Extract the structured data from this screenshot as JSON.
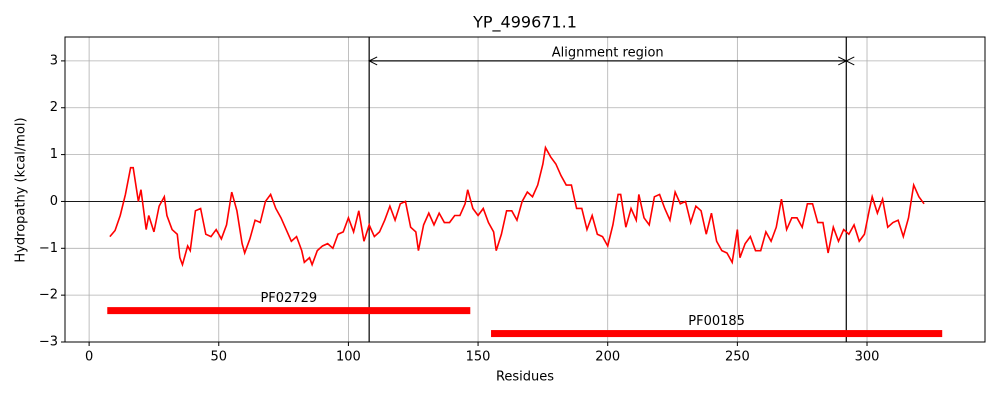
{
  "chart_data": {
    "type": "line",
    "title": "YP_499671.1",
    "x_label": "Residues",
    "y_label": "Hydropathy (kcal/mol)",
    "xlim": [
      -9.3,
      345.5
    ],
    "ylim": [
      -3,
      3.51
    ],
    "xticks": [
      0,
      50,
      100,
      150,
      200,
      250,
      300
    ],
    "yticks": [
      {
        "value": -3,
        "label": "−3"
      },
      {
        "value": -2,
        "label": "−2"
      },
      {
        "value": -1,
        "label": "−1"
      },
      0,
      1,
      2,
      3
    ],
    "grid": true,
    "color": "#ff0000",
    "x": [
      8,
      10,
      12,
      14,
      16,
      17,
      19,
      20,
      22,
      23,
      25,
      27,
      29,
      30,
      32,
      34,
      35,
      36,
      38,
      39,
      41,
      43,
      45,
      47,
      49,
      51,
      53,
      55,
      57,
      59,
      60,
      62,
      64,
      66,
      68,
      70,
      72,
      74,
      76,
      78,
      80,
      82,
      83,
      85,
      86,
      88,
      90,
      92,
      94,
      96,
      98,
      100,
      102,
      104,
      106,
      108,
      110,
      112,
      114,
      116,
      118,
      120,
      122,
      124,
      126,
      127,
      129,
      131,
      133,
      135,
      137,
      139,
      141,
      143,
      145,
      146,
      148,
      150,
      152,
      154,
      156,
      157,
      159,
      161,
      163,
      165,
      167,
      169,
      171,
      173,
      175,
      176,
      178,
      180,
      182,
      184,
      186,
      188,
      190,
      192,
      194,
      196,
      198,
      200,
      202,
      204,
      205,
      207,
      209,
      211,
      212,
      214,
      216,
      218,
      220,
      222,
      224,
      226,
      228,
      230,
      232,
      234,
      236,
      238,
      240,
      242,
      244,
      246,
      248,
      250,
      251,
      253,
      255,
      257,
      259,
      261,
      263,
      265,
      267,
      269,
      271,
      273,
      275,
      277,
      279,
      281,
      283,
      285,
      287,
      289,
      291,
      293,
      295,
      297,
      299,
      301,
      302,
      304,
      306,
      308,
      310,
      312,
      314,
      316,
      318,
      320,
      322
    ],
    "values": [
      -0.75,
      -0.62,
      -0.3,
      0.15,
      0.72,
      0.72,
      0.0,
      0.25,
      -0.6,
      -0.3,
      -0.65,
      -0.1,
      0.1,
      -0.3,
      -0.6,
      -0.7,
      -1.2,
      -1.35,
      -0.95,
      -1.05,
      -0.2,
      -0.15,
      -0.7,
      -0.75,
      -0.6,
      -0.8,
      -0.5,
      0.2,
      -0.2,
      -0.9,
      -1.1,
      -0.8,
      -0.4,
      -0.45,
      0.0,
      0.15,
      -0.15,
      -0.35,
      -0.6,
      -0.85,
      -0.75,
      -1.05,
      -1.3,
      -1.2,
      -1.35,
      -1.05,
      -0.95,
      -0.9,
      -1.0,
      -0.7,
      -0.65,
      -0.35,
      -0.65,
      -0.2,
      -0.85,
      -0.5,
      -0.75,
      -0.65,
      -0.4,
      -0.1,
      -0.4,
      -0.05,
      0.0,
      -0.55,
      -0.65,
      -1.05,
      -0.5,
      -0.25,
      -0.5,
      -0.25,
      -0.45,
      -0.45,
      -0.3,
      -0.3,
      -0.05,
      0.25,
      -0.15,
      -0.3,
      -0.15,
      -0.45,
      -0.65,
      -1.05,
      -0.7,
      -0.2,
      -0.2,
      -0.4,
      0.0,
      0.2,
      0.1,
      0.35,
      0.8,
      1.15,
      0.95,
      0.8,
      0.55,
      0.35,
      0.35,
      -0.15,
      -0.15,
      -0.6,
      -0.3,
      -0.7,
      -0.75,
      -0.95,
      -0.5,
      0.15,
      0.15,
      -0.55,
      -0.15,
      -0.4,
      0.15,
      -0.35,
      -0.5,
      0.1,
      0.15,
      -0.15,
      -0.4,
      0.2,
      -0.05,
      0.0,
      -0.45,
      -0.1,
      -0.2,
      -0.7,
      -0.25,
      -0.85,
      -1.05,
      -1.1,
      -1.3,
      -0.6,
      -1.2,
      -0.9,
      -0.75,
      -1.05,
      -1.05,
      -0.65,
      -0.85,
      -0.55,
      0.05,
      -0.6,
      -0.35,
      -0.35,
      -0.55,
      -0.05,
      -0.05,
      -0.45,
      -0.45,
      -1.1,
      -0.55,
      -0.85,
      -0.6,
      -0.7,
      -0.5,
      -0.85,
      -0.7,
      -0.15,
      0.1,
      -0.25,
      0.05,
      -0.55,
      -0.45,
      -0.4,
      -0.75,
      -0.35,
      0.35,
      0.1,
      -0.05
    ],
    "hline": 0,
    "vlines": [
      108,
      292
    ],
    "annotation": {
      "text": "Alignment region",
      "x": [
        108,
        292
      ],
      "y": 3
    },
    "domains": [
      {
        "name": "PF02729",
        "start": 7,
        "end": 147,
        "y": -2.33
      },
      {
        "name": "PF00185",
        "start": 155,
        "end": 329,
        "y": -2.82
      }
    ]
  }
}
